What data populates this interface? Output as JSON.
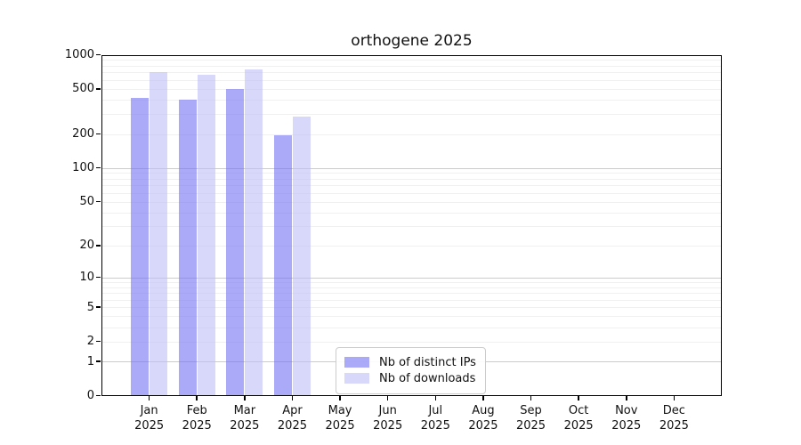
{
  "chart_data": {
    "type": "bar",
    "title": "orthogene 2025",
    "categories": [
      "Jan",
      "Feb",
      "Mar",
      "Apr",
      "May",
      "Jun",
      "Jul",
      "Aug",
      "Sep",
      "Oct",
      "Nov",
      "Dec"
    ],
    "year_label": "2025",
    "series": [
      {
        "name": "Nb of distinct IPs",
        "color": "rgba(113,113,243,0.6)",
        "values": [
          420,
          400,
          500,
          195,
          null,
          null,
          null,
          null,
          null,
          null,
          null,
          null
        ]
      },
      {
        "name": "Nb of downloads",
        "color": "rgba(190,190,247,0.6)",
        "values": [
          705,
          670,
          740,
          285,
          null,
          null,
          null,
          null,
          null,
          null,
          null,
          null
        ]
      }
    ],
    "yscale": "log1p",
    "ylim": [
      0,
      1000
    ],
    "yticks": [
      0,
      1,
      2,
      5,
      10,
      20,
      50,
      100,
      200,
      500,
      1000
    ],
    "grid": {
      "orientation": "horizontal",
      "major_lines": [
        1,
        10,
        100,
        1000
      ],
      "major_color": "#cccccc",
      "minor_color": "#f0f0f0"
    },
    "legend_position": "lower center inside plot"
  }
}
